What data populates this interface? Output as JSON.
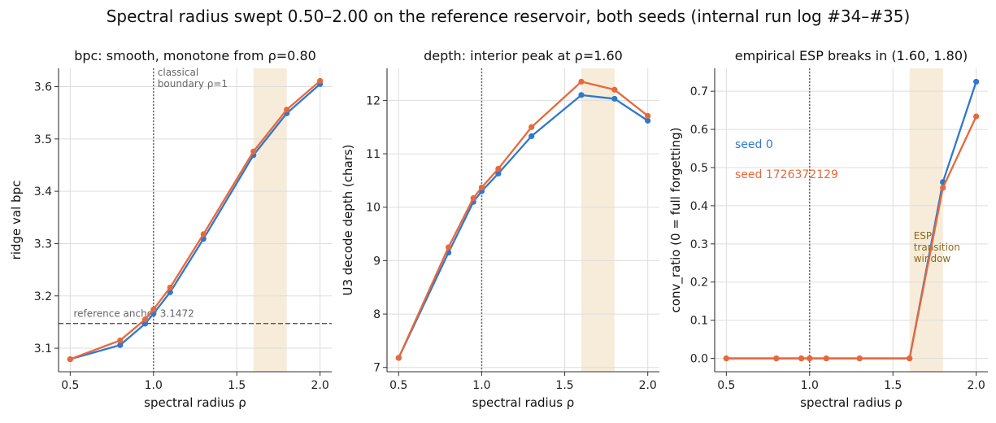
{
  "figure": {
    "suptitle": "Spectral radius swept 0.50–2.00 on the reference reservoir, both seeds (internal run log #34–#35)"
  },
  "legend": {
    "seed0": "seed 0",
    "seed1": "seed 1726372129"
  },
  "colors": {
    "seed0": "#2f78cf",
    "seed1": "#e8683a",
    "band": "#f6ecd9",
    "band_text": "#8a6a1e",
    "grid": "#dddddd",
    "refline": "#555555"
  },
  "chart_data": [
    {
      "type": "line",
      "title": "bpc: smooth, monotone from ρ=0.80",
      "xlabel": "spectral radius ρ",
      "ylabel": "ridge val bpc",
      "xlim": [
        0.43,
        2.07
      ],
      "ylim": [
        3.055,
        3.635
      ],
      "xticks": [
        0.5,
        1.0,
        1.5,
        2.0
      ],
      "xtick_labels": [
        "0.5",
        "1.0",
        "1.5",
        "2.0"
      ],
      "yticks": [
        3.1,
        3.2,
        3.3,
        3.4,
        3.5,
        3.6
      ],
      "ytick_labels": [
        "3.1",
        "3.2",
        "3.3",
        "3.4",
        "3.5",
        "3.6"
      ],
      "grid": true,
      "band": [
        1.6,
        1.8
      ],
      "vline": 1.0,
      "vline_label": [
        "classical",
        "boundary ρ=1"
      ],
      "hline": 3.1472,
      "hline_label": "reference anchor 3.1472",
      "series": [
        {
          "name": "seed 0",
          "x": [
            0.5,
            0.8,
            0.95,
            1.0,
            1.1,
            1.3,
            1.6,
            1.8,
            2.0
          ],
          "y": [
            3.079,
            3.106,
            3.147,
            3.166,
            3.207,
            3.309,
            3.469,
            3.549,
            3.605
          ]
        },
        {
          "name": "seed 1726372129",
          "x": [
            0.5,
            0.8,
            0.95,
            1.0,
            1.1,
            1.3,
            1.6,
            1.8,
            2.0
          ],
          "y": [
            3.079,
            3.115,
            3.155,
            3.174,
            3.216,
            3.318,
            3.476,
            3.556,
            3.611
          ]
        }
      ]
    },
    {
      "type": "line",
      "title": "depth: interior peak at ρ=1.60",
      "xlabel": "spectral radius ρ",
      "ylabel": "U3 decode depth (chars)",
      "xlim": [
        0.43,
        2.07
      ],
      "ylim": [
        6.92,
        12.6
      ],
      "xticks": [
        0.5,
        1.0,
        1.5,
        2.0
      ],
      "xtick_labels": [
        "0.5",
        "1.0",
        "1.5",
        "2.0"
      ],
      "yticks": [
        7,
        8,
        9,
        10,
        11,
        12
      ],
      "ytick_labels": [
        "7",
        "8",
        "9",
        "10",
        "11",
        "12"
      ],
      "grid": true,
      "band": [
        1.6,
        1.8
      ],
      "vline": 1.0,
      "series": [
        {
          "name": "seed 0",
          "x": [
            0.5,
            0.8,
            0.95,
            1.0,
            1.1,
            1.3,
            1.6,
            1.8,
            2.0
          ],
          "y": [
            7.18,
            9.15,
            10.1,
            10.3,
            10.63,
            11.33,
            12.1,
            12.03,
            11.62
          ]
        },
        {
          "name": "seed 1726372129",
          "x": [
            0.5,
            0.8,
            0.95,
            1.0,
            1.1,
            1.3,
            1.6,
            1.8,
            2.0
          ],
          "y": [
            7.18,
            9.25,
            10.17,
            10.37,
            10.72,
            11.5,
            12.35,
            12.2,
            11.71
          ]
        }
      ]
    },
    {
      "type": "line",
      "title": "empirical ESP breaks in (1.60, 1.80)",
      "xlabel": "spectral radius ρ",
      "ylabel": "conv_ratio (0 = full forgetting)",
      "xlim": [
        0.43,
        2.07
      ],
      "ylim": [
        -0.035,
        0.76
      ],
      "xticks": [
        0.5,
        1.0,
        1.5,
        2.0
      ],
      "xtick_labels": [
        "0.5",
        "1.0",
        "1.5",
        "2.0"
      ],
      "yticks": [
        0.0,
        0.1,
        0.2,
        0.3,
        0.4,
        0.5,
        0.6,
        0.7
      ],
      "ytick_labels": [
        "0.0",
        "0.1",
        "0.2",
        "0.3",
        "0.4",
        "0.5",
        "0.6",
        "0.7"
      ],
      "grid": true,
      "band": [
        1.6,
        1.8
      ],
      "band_label": [
        "ESP",
        "transition",
        "window"
      ],
      "vline": 1.0,
      "series": [
        {
          "name": "seed 0",
          "x": [
            0.5,
            0.8,
            0.95,
            1.0,
            1.1,
            1.3,
            1.6,
            1.8,
            2.0
          ],
          "y": [
            0.0,
            0.0,
            0.0,
            0.0,
            0.0,
            0.0,
            0.0,
            0.462,
            0.725
          ]
        },
        {
          "name": "seed 1726372129",
          "x": [
            0.5,
            0.8,
            0.95,
            1.0,
            1.1,
            1.3,
            1.6,
            1.8,
            2.0
          ],
          "y": [
            0.0,
            0.0,
            0.0,
            0.0,
            0.0,
            0.0,
            0.0,
            0.447,
            0.634
          ]
        }
      ]
    }
  ]
}
